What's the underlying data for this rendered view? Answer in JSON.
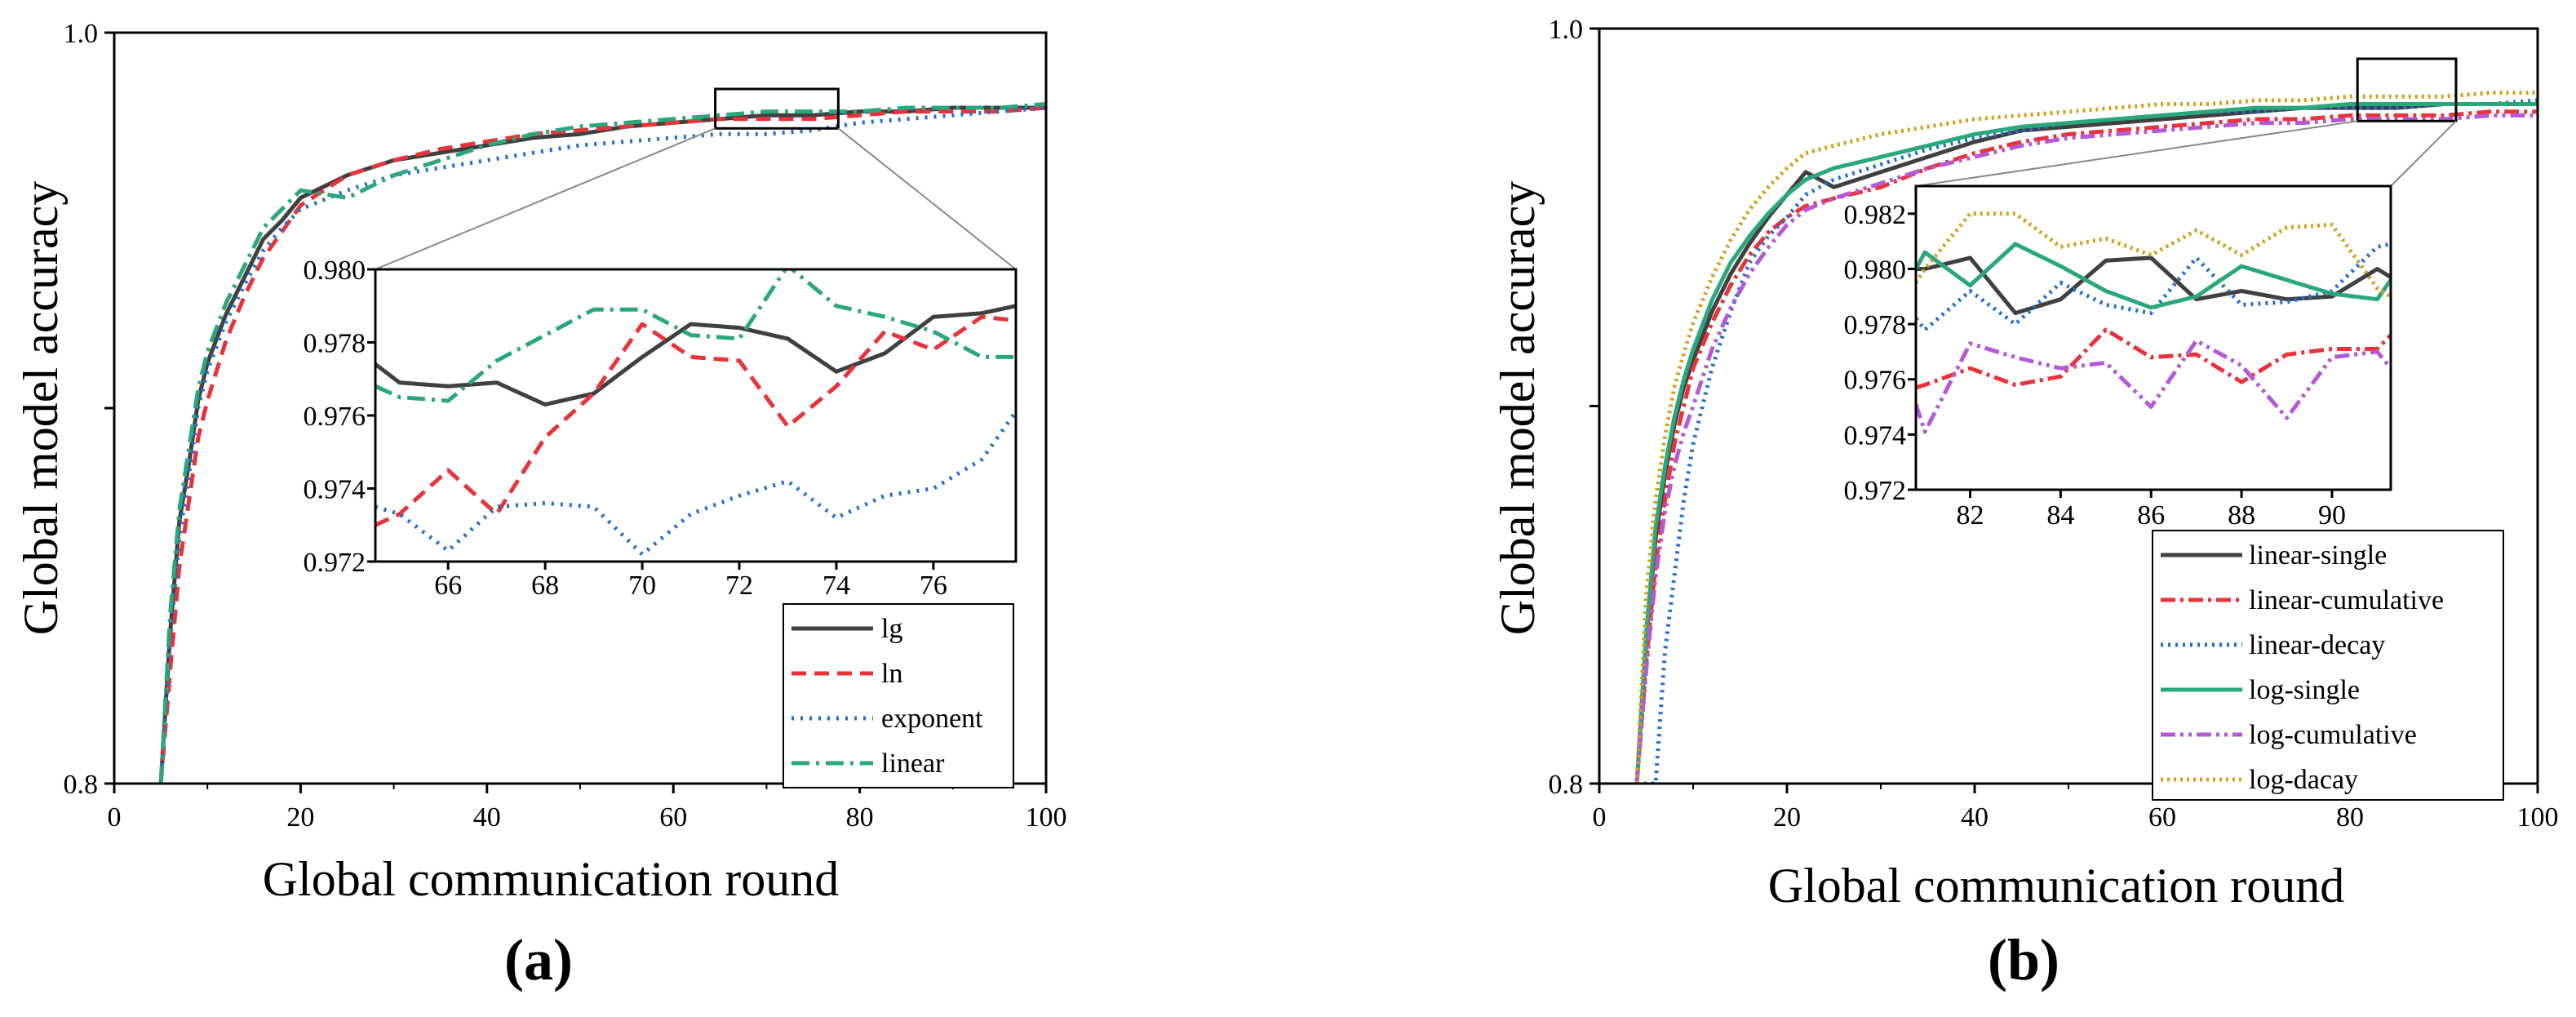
{
  "chart_data": [
    {
      "panel_label": "(a)",
      "type": "line",
      "xlabel": "Global communication round",
      "ylabel": "Global model accuracy",
      "xlim": [
        0,
        100
      ],
      "ylim": [
        0.8,
        1.0
      ],
      "xticks": [
        "0",
        "20",
        "40",
        "60",
        "80",
        "100"
      ],
      "yticks": [
        "0.8",
        "1.0"
      ],
      "legend_position": "bottom-right",
      "x": [
        5,
        6,
        7,
        8,
        9,
        10,
        12,
        14,
        16,
        18,
        20,
        25,
        30,
        35,
        40,
        45,
        50,
        55,
        60,
        65,
        70,
        75,
        80,
        85,
        90,
        95,
        100
      ],
      "series": [
        {
          "name": "lg",
          "color": "#404040",
          "dash": "",
          "values": [
            0.8,
            0.84,
            0.87,
            0.885,
            0.902,
            0.912,
            0.925,
            0.935,
            0.945,
            0.95,
            0.956,
            0.962,
            0.966,
            0.968,
            0.97,
            0.972,
            0.973,
            0.975,
            0.976,
            0.977,
            0.978,
            0.978,
            0.979,
            0.979,
            0.98,
            0.98,
            0.98
          ]
        },
        {
          "name": "ln",
          "color": "#e8333a",
          "dash": "18,10",
          "values": [
            0.8,
            0.83,
            0.858,
            0.875,
            0.892,
            0.902,
            0.918,
            0.93,
            0.94,
            0.947,
            0.954,
            0.962,
            0.966,
            0.969,
            0.971,
            0.973,
            0.974,
            0.975,
            0.976,
            0.977,
            0.977,
            0.977,
            0.978,
            0.979,
            0.979,
            0.979,
            0.98
          ]
        },
        {
          "name": "exponent",
          "color": "#1f6fd1",
          "dash": "3,8",
          "values": [
            0.8,
            0.838,
            0.866,
            0.882,
            0.9,
            0.91,
            0.923,
            0.933,
            0.942,
            0.948,
            0.953,
            0.958,
            0.962,
            0.964,
            0.966,
            0.968,
            0.97,
            0.971,
            0.972,
            0.973,
            0.973,
            0.974,
            0.976,
            0.977,
            0.978,
            0.979,
            0.98
          ]
        },
        {
          "name": "linear",
          "color": "#2aa87c",
          "dash": "22,8,4,8",
          "values": [
            0.8,
            0.845,
            0.873,
            0.889,
            0.905,
            0.915,
            0.928,
            0.938,
            0.948,
            0.953,
            0.958,
            0.956,
            0.962,
            0.966,
            0.97,
            0.973,
            0.975,
            0.976,
            0.977,
            0.978,
            0.979,
            0.979,
            0.979,
            0.98,
            0.98,
            0.98,
            0.981
          ]
        }
      ],
      "inset": {
        "xlim": [
          64.5,
          77.7
        ],
        "ylim": [
          0.972,
          0.98
        ],
        "xticks": [
          "66",
          "68",
          "70",
          "72",
          "74",
          "76"
        ],
        "yticks": [
          "0.972",
          "0.974",
          "0.976",
          "0.978",
          "0.980"
        ],
        "x": [
          64.5,
          65,
          66,
          67,
          68,
          69,
          70,
          71,
          72,
          73,
          74,
          75,
          76,
          77,
          77.7
        ],
        "series": [
          {
            "name": "lg",
            "values": [
              0.9774,
              0.9769,
              0.9768,
              0.9769,
              0.9763,
              0.9766,
              0.9776,
              0.9785,
              0.9784,
              0.9781,
              0.9772,
              0.9777,
              0.9787,
              0.9788,
              0.979
            ]
          },
          {
            "name": "ln",
            "values": [
              0.973,
              0.9733,
              0.9745,
              0.9733,
              0.9754,
              0.9766,
              0.9785,
              0.9776,
              0.9775,
              0.9757,
              0.9768,
              0.9783,
              0.9778,
              0.9787,
              0.9786
            ]
          },
          {
            "name": "exponent",
            "values": [
              0.9735,
              0.9733,
              0.9723,
              0.9735,
              0.9736,
              0.9735,
              0.9722,
              0.9733,
              0.9738,
              0.9742,
              0.9732,
              0.9738,
              0.974,
              0.9748,
              0.9761
            ]
          },
          {
            "name": "linear",
            "values": [
              0.9768,
              0.9765,
              0.9764,
              0.9775,
              0.9782,
              0.9789,
              0.9789,
              0.9782,
              0.9781,
              0.9801,
              0.979,
              0.9787,
              0.9783,
              0.9776,
              0.9776
            ]
          }
        ]
      }
    },
    {
      "panel_label": "(b)",
      "type": "line",
      "xlabel": "Global communication round",
      "ylabel": "Global model accuracy",
      "xlim": [
        0,
        100
      ],
      "ylim": [
        0.8,
        1.0
      ],
      "xticks": [
        "0",
        "20",
        "40",
        "60",
        "80",
        "100"
      ],
      "yticks": [
        "0.8",
        "1.0"
      ],
      "legend_position": "bottom-right",
      "x": [
        4,
        5,
        6,
        7,
        8,
        9,
        10,
        12,
        14,
        16,
        18,
        20,
        22,
        25,
        30,
        35,
        40,
        45,
        50,
        55,
        60,
        65,
        70,
        75,
        80,
        85,
        90,
        95,
        100
      ],
      "series": [
        {
          "name": "linear-single",
          "color": "#404040",
          "dash": "",
          "values": [
            0.8,
            0.838,
            0.865,
            0.882,
            0.895,
            0.905,
            0.912,
            0.925,
            0.935,
            0.943,
            0.95,
            0.956,
            0.962,
            0.958,
            0.962,
            0.966,
            0.97,
            0.973,
            0.974,
            0.975,
            0.976,
            0.977,
            0.978,
            0.979,
            0.979,
            0.979,
            0.98,
            0.98,
            0.98
          ]
        },
        {
          "name": "linear-cumulative",
          "color": "#e8333a",
          "dash": "18,6,4,6",
          "values": [
            0.8,
            0.832,
            0.858,
            0.875,
            0.89,
            0.9,
            0.91,
            0.922,
            0.932,
            0.94,
            0.946,
            0.95,
            0.953,
            0.955,
            0.958,
            0.963,
            0.967,
            0.97,
            0.972,
            0.973,
            0.974,
            0.975,
            0.976,
            0.976,
            0.977,
            0.977,
            0.977,
            0.978,
            0.978
          ]
        },
        {
          "name": "linear-decay",
          "color": "#1f6fd1",
          "dash": "3,6",
          "values": [
            0.8,
            0.8,
            0.8,
            0.835,
            0.855,
            0.875,
            0.89,
            0.91,
            0.925,
            0.938,
            0.945,
            0.95,
            0.956,
            0.96,
            0.964,
            0.968,
            0.971,
            0.973,
            0.975,
            0.976,
            0.977,
            0.978,
            0.978,
            0.979,
            0.979,
            0.979,
            0.98,
            0.98,
            0.981
          ]
        },
        {
          "name": "log-single",
          "color": "#2aa87c",
          "dash": "",
          "values": [
            0.8,
            0.84,
            0.868,
            0.884,
            0.897,
            0.907,
            0.915,
            0.928,
            0.938,
            0.945,
            0.951,
            0.956,
            0.96,
            0.963,
            0.966,
            0.969,
            0.972,
            0.974,
            0.975,
            0.976,
            0.977,
            0.978,
            0.979,
            0.979,
            0.98,
            0.98,
            0.98,
            0.98,
            0.98
          ]
        },
        {
          "name": "log-cumulative",
          "color": "#b45ad6",
          "dash": "18,6,4,6,4,6",
          "values": [
            0.8,
            0.83,
            0.855,
            0.872,
            0.884,
            0.893,
            0.9,
            0.915,
            0.926,
            0.935,
            0.942,
            0.948,
            0.952,
            0.955,
            0.959,
            0.963,
            0.966,
            0.969,
            0.971,
            0.972,
            0.973,
            0.974,
            0.975,
            0.975,
            0.976,
            0.976,
            0.976,
            0.977,
            0.977
          ]
        },
        {
          "name": "log-dacay",
          "color": "#d4a017",
          "dash": "3,5",
          "values": [
            0.8,
            0.85,
            0.875,
            0.892,
            0.905,
            0.914,
            0.922,
            0.934,
            0.944,
            0.952,
            0.958,
            0.963,
            0.967,
            0.969,
            0.972,
            0.974,
            0.976,
            0.977,
            0.978,
            0.979,
            0.98,
            0.98,
            0.981,
            0.981,
            0.982,
            0.982,
            0.982,
            0.983,
            0.983
          ]
        }
      ],
      "inset": {
        "xlim": [
          80.8,
          91.3
        ],
        "ylim": [
          0.972,
          0.983
        ],
        "xticks": [
          "82",
          "84",
          "86",
          "88",
          "90"
        ],
        "yticks": [
          "0.972",
          "0.974",
          "0.976",
          "0.978",
          "0.980",
          "0.982"
        ],
        "x": [
          80.8,
          81,
          82,
          83,
          84,
          85,
          86,
          87,
          88,
          89,
          90,
          91,
          91.3
        ],
        "series": [
          {
            "name": "linear-single",
            "values": [
              0.98,
              0.98,
              0.9804,
              0.9784,
              0.9789,
              0.9803,
              0.9804,
              0.9789,
              0.9792,
              0.9789,
              0.979,
              0.98,
              0.9797
            ]
          },
          {
            "name": "linear-cumulative",
            "values": [
              0.9757,
              0.9758,
              0.9764,
              0.9758,
              0.9761,
              0.9778,
              0.9768,
              0.9769,
              0.9759,
              0.9769,
              0.9771,
              0.9771,
              0.9776
            ]
          },
          {
            "name": "linear-decay",
            "values": [
              0.9782,
              0.9778,
              0.9792,
              0.978,
              0.9795,
              0.9787,
              0.9784,
              0.9804,
              0.9787,
              0.9788,
              0.9792,
              0.9808,
              0.9809
            ]
          },
          {
            "name": "log-single",
            "values": [
              0.98,
              0.9806,
              0.9794,
              0.9809,
              0.9801,
              0.9792,
              0.9786,
              0.979,
              0.9801,
              0.9796,
              0.9791,
              0.9789,
              0.9796
            ]
          },
          {
            "name": "log-cumulative",
            "values": [
              0.9751,
              0.9741,
              0.9773,
              0.9768,
              0.9764,
              0.9766,
              0.975,
              0.9774,
              0.9765,
              0.9746,
              0.9768,
              0.977,
              0.9764
            ]
          },
          {
            "name": "log-dacay",
            "values": [
              0.9795,
              0.98,
              0.982,
              0.982,
              0.9808,
              0.9811,
              0.9805,
              0.9814,
              0.9805,
              0.9815,
              0.9816,
              0.9793,
              0.979
            ]
          }
        ]
      }
    }
  ]
}
